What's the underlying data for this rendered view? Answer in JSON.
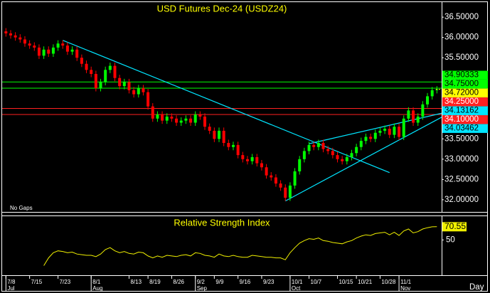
{
  "chart_data": [
    {
      "type": "candlestick",
      "title": "USD Futures Dec-24 (USDZ24)",
      "note": "No Gaps",
      "up_color": "#00ff00",
      "down_color": "#ff0000",
      "xlim": [
        -0.8,
        92
      ],
      "ylim": [
        31.7,
        36.87
      ],
      "yticks": [
        {
          "value": 32.0,
          "label": "32.00000"
        },
        {
          "value": 32.5,
          "label": "32.50000"
        },
        {
          "value": 33.0,
          "label": "33.00000"
        },
        {
          "value": 33.5,
          "label": "33.50000"
        },
        {
          "value": 34.0,
          "label": "34.00000"
        },
        {
          "value": 34.5,
          "label": "34.50000"
        },
        {
          "value": 35.0,
          "label": "35.00000"
        },
        {
          "value": 35.5,
          "label": "35.50000"
        },
        {
          "value": 36.0,
          "label": "36.00000"
        },
        {
          "value": 36.5,
          "label": "36.50000"
        }
      ],
      "open": [
        36.15,
        36.1,
        36.05,
        36.0,
        35.95,
        35.85,
        35.8,
        35.75,
        35.55,
        35.7,
        35.6,
        35.75,
        35.85,
        35.8,
        35.65,
        35.7,
        35.5,
        35.35,
        35.2,
        35.1,
        34.75,
        34.9,
        35.2,
        35.3,
        35.0,
        34.8,
        34.9,
        34.7,
        34.6,
        34.75,
        34.65,
        34.3,
        34.0,
        34.1,
        33.95,
        34.05,
        34.0,
        33.9,
        33.95,
        34.0,
        33.9,
        34.1,
        34.05,
        33.8,
        33.7,
        33.5,
        33.7,
        33.4,
        33.3,
        33.35,
        33.1,
        33.0,
        32.95,
        33.05,
        32.9,
        32.8,
        32.6,
        32.55,
        32.4,
        32.3,
        32.05,
        32.35,
        32.7,
        33.0,
        33.2,
        33.35,
        33.3,
        33.4,
        33.25,
        33.2,
        33.1,
        33.0,
        32.95,
        33.05,
        33.15,
        33.3,
        33.45,
        33.55,
        33.5,
        33.65,
        33.7,
        33.75,
        33.6,
        33.8,
        33.55,
        34.0,
        34.2,
        33.9,
        34.05,
        34.35,
        34.55,
        34.7
      ],
      "high": [
        36.23,
        36.18,
        36.13,
        36.08,
        36.03,
        35.93,
        35.88,
        35.83,
        35.78,
        35.78,
        35.83,
        35.93,
        35.93,
        35.88,
        35.78,
        35.78,
        35.58,
        35.43,
        35.28,
        35.18,
        34.98,
        35.28,
        35.38,
        35.38,
        35.08,
        34.98,
        34.98,
        34.78,
        34.83,
        34.83,
        34.73,
        34.38,
        34.18,
        34.18,
        34.13,
        34.13,
        34.08,
        34.03,
        34.08,
        34.08,
        34.18,
        34.18,
        34.13,
        33.88,
        33.78,
        33.78,
        33.78,
        33.48,
        33.43,
        33.43,
        33.18,
        33.08,
        33.13,
        33.13,
        32.98,
        32.88,
        32.68,
        32.63,
        32.48,
        32.38,
        32.43,
        32.78,
        33.08,
        33.28,
        33.43,
        33.43,
        33.48,
        33.48,
        33.33,
        33.28,
        33.18,
        33.08,
        33.13,
        33.23,
        33.38,
        33.53,
        33.63,
        33.63,
        33.73,
        33.78,
        33.83,
        33.83,
        33.88,
        33.88,
        34.08,
        34.28,
        34.28,
        34.13,
        34.43,
        34.63,
        34.78,
        34.8
      ],
      "low": [
        36.02,
        35.97,
        35.92,
        35.87,
        35.77,
        35.72,
        35.67,
        35.47,
        35.47,
        35.52,
        35.52,
        35.67,
        35.72,
        35.57,
        35.57,
        35.42,
        35.27,
        35.12,
        35.02,
        34.67,
        34.67,
        34.82,
        35.12,
        34.92,
        34.72,
        34.72,
        34.62,
        34.52,
        34.52,
        34.57,
        34.22,
        33.92,
        33.92,
        33.87,
        33.87,
        33.92,
        33.82,
        33.82,
        33.87,
        33.82,
        33.82,
        33.97,
        33.72,
        33.62,
        33.42,
        33.42,
        33.32,
        33.22,
        33.22,
        33.02,
        32.92,
        32.87,
        32.87,
        32.82,
        32.72,
        32.52,
        32.47,
        32.32,
        32.22,
        31.97,
        31.97,
        32.27,
        32.62,
        32.92,
        33.12,
        33.22,
        33.22,
        33.17,
        33.12,
        33.02,
        32.92,
        32.87,
        32.87,
        32.97,
        33.07,
        33.22,
        33.37,
        33.42,
        33.42,
        33.57,
        33.62,
        33.52,
        33.52,
        33.47,
        33.47,
        33.92,
        33.82,
        33.82,
        33.97,
        34.27,
        34.47,
        34.62
      ],
      "close": [
        36.1,
        36.05,
        36.0,
        35.95,
        35.85,
        35.8,
        35.75,
        35.55,
        35.7,
        35.6,
        35.75,
        35.85,
        35.8,
        35.65,
        35.7,
        35.5,
        35.35,
        35.2,
        35.1,
        34.75,
        34.9,
        35.2,
        35.3,
        35.0,
        34.8,
        34.9,
        34.7,
        34.6,
        34.75,
        34.65,
        34.3,
        34.0,
        34.1,
        33.95,
        34.05,
        34.0,
        33.9,
        33.95,
        34.0,
        33.9,
        34.1,
        34.05,
        33.8,
        33.7,
        33.5,
        33.7,
        33.4,
        33.3,
        33.35,
        33.1,
        33.0,
        32.95,
        33.05,
        32.9,
        32.8,
        32.6,
        32.55,
        32.4,
        32.3,
        32.05,
        32.35,
        32.7,
        33.0,
        33.2,
        33.35,
        33.3,
        33.4,
        33.25,
        33.2,
        33.1,
        33.0,
        32.95,
        33.05,
        33.15,
        33.3,
        33.45,
        33.55,
        33.5,
        33.65,
        33.7,
        33.75,
        33.6,
        33.8,
        33.55,
        34.0,
        34.2,
        33.9,
        34.05,
        34.35,
        34.55,
        34.7,
        34.72
      ],
      "levels": [
        {
          "value": 34.90333,
          "color": "#00ff00"
        },
        {
          "value": 34.75,
          "label": "34.75000",
          "color": "#00ff00"
        },
        {
          "value": 34.25,
          "label": "34.25000",
          "color": "#ff2020"
        },
        {
          "value": 34.1,
          "label": "34.10000",
          "color": "#ff2020"
        }
      ],
      "last_price": {
        "value": 34.72,
        "label": "34.72000",
        "color": "#ffff00"
      },
      "trendline_color": "#00e5ff",
      "trendlines": [
        {
          "x": [
            12,
            81
          ],
          "y": [
            35.93,
            32.67
          ]
        },
        {
          "x": [
            59,
            92
          ],
          "y": [
            31.97,
            34.03462
          ]
        },
        {
          "x": [
            64,
            92
          ],
          "y": [
            33.38,
            34.13162
          ]
        }
      ]
    },
    {
      "type": "line",
      "title": "Relative Strength Index",
      "color": "#f0f000",
      "ylim": [
        -5,
        87
      ],
      "yticks": [
        50
      ],
      "xticks": [
        {
          "value": 0,
          "label": "7/8"
        },
        {
          "value": 5,
          "label": "7/15"
        },
        {
          "value": 11,
          "label": "7/23"
        },
        {
          "value": 18,
          "label": "8/1"
        },
        {
          "value": 26,
          "label": "8/13"
        },
        {
          "value": 30,
          "label": "8/19"
        },
        {
          "value": 35,
          "label": "8/26"
        },
        {
          "value": 40,
          "label": "9/2"
        },
        {
          "value": 44,
          "label": "9/9"
        },
        {
          "value": 49,
          "label": "9/16"
        },
        {
          "value": 54,
          "label": "9/23"
        },
        {
          "value": 60,
          "label": "10/1"
        },
        {
          "value": 64,
          "label": "10/7"
        },
        {
          "value": 70,
          "label": "10/15"
        },
        {
          "value": 74,
          "label": "10/21"
        },
        {
          "value": 79,
          "label": "10/28"
        },
        {
          "value": 83,
          "label": "11/1"
        }
      ],
      "month_ticks": [
        {
          "value": 0,
          "label": "Jul"
        },
        {
          "value": 18,
          "label": "Aug"
        },
        {
          "value": 40,
          "label": "Sep"
        },
        {
          "value": 60,
          "label": "Oct"
        },
        {
          "value": 83,
          "label": "Nov"
        }
      ],
      "period_label": "Day",
      "values": [
        null,
        null,
        null,
        null,
        null,
        null,
        null,
        null,
        10,
        22,
        30,
        33,
        32,
        30,
        31,
        28,
        27,
        26,
        26,
        24,
        28,
        35,
        38,
        33,
        30,
        32,
        29,
        28,
        31,
        30,
        25,
        22,
        25,
        23,
        26,
        25,
        24,
        26,
        27,
        25,
        30,
        29,
        26,
        25,
        23,
        28,
        25,
        24,
        26,
        24,
        23,
        23,
        26,
        25,
        24,
        23,
        23,
        22,
        22,
        19,
        30,
        38,
        45,
        49,
        52,
        51,
        53,
        49,
        48,
        46,
        45,
        44,
        47,
        49,
        53,
        56,
        58,
        57,
        60,
        61,
        62,
        58,
        62,
        57,
        64,
        67,
        61,
        63,
        67,
        69,
        70.5,
        70.55
      ]
    }
  ]
}
